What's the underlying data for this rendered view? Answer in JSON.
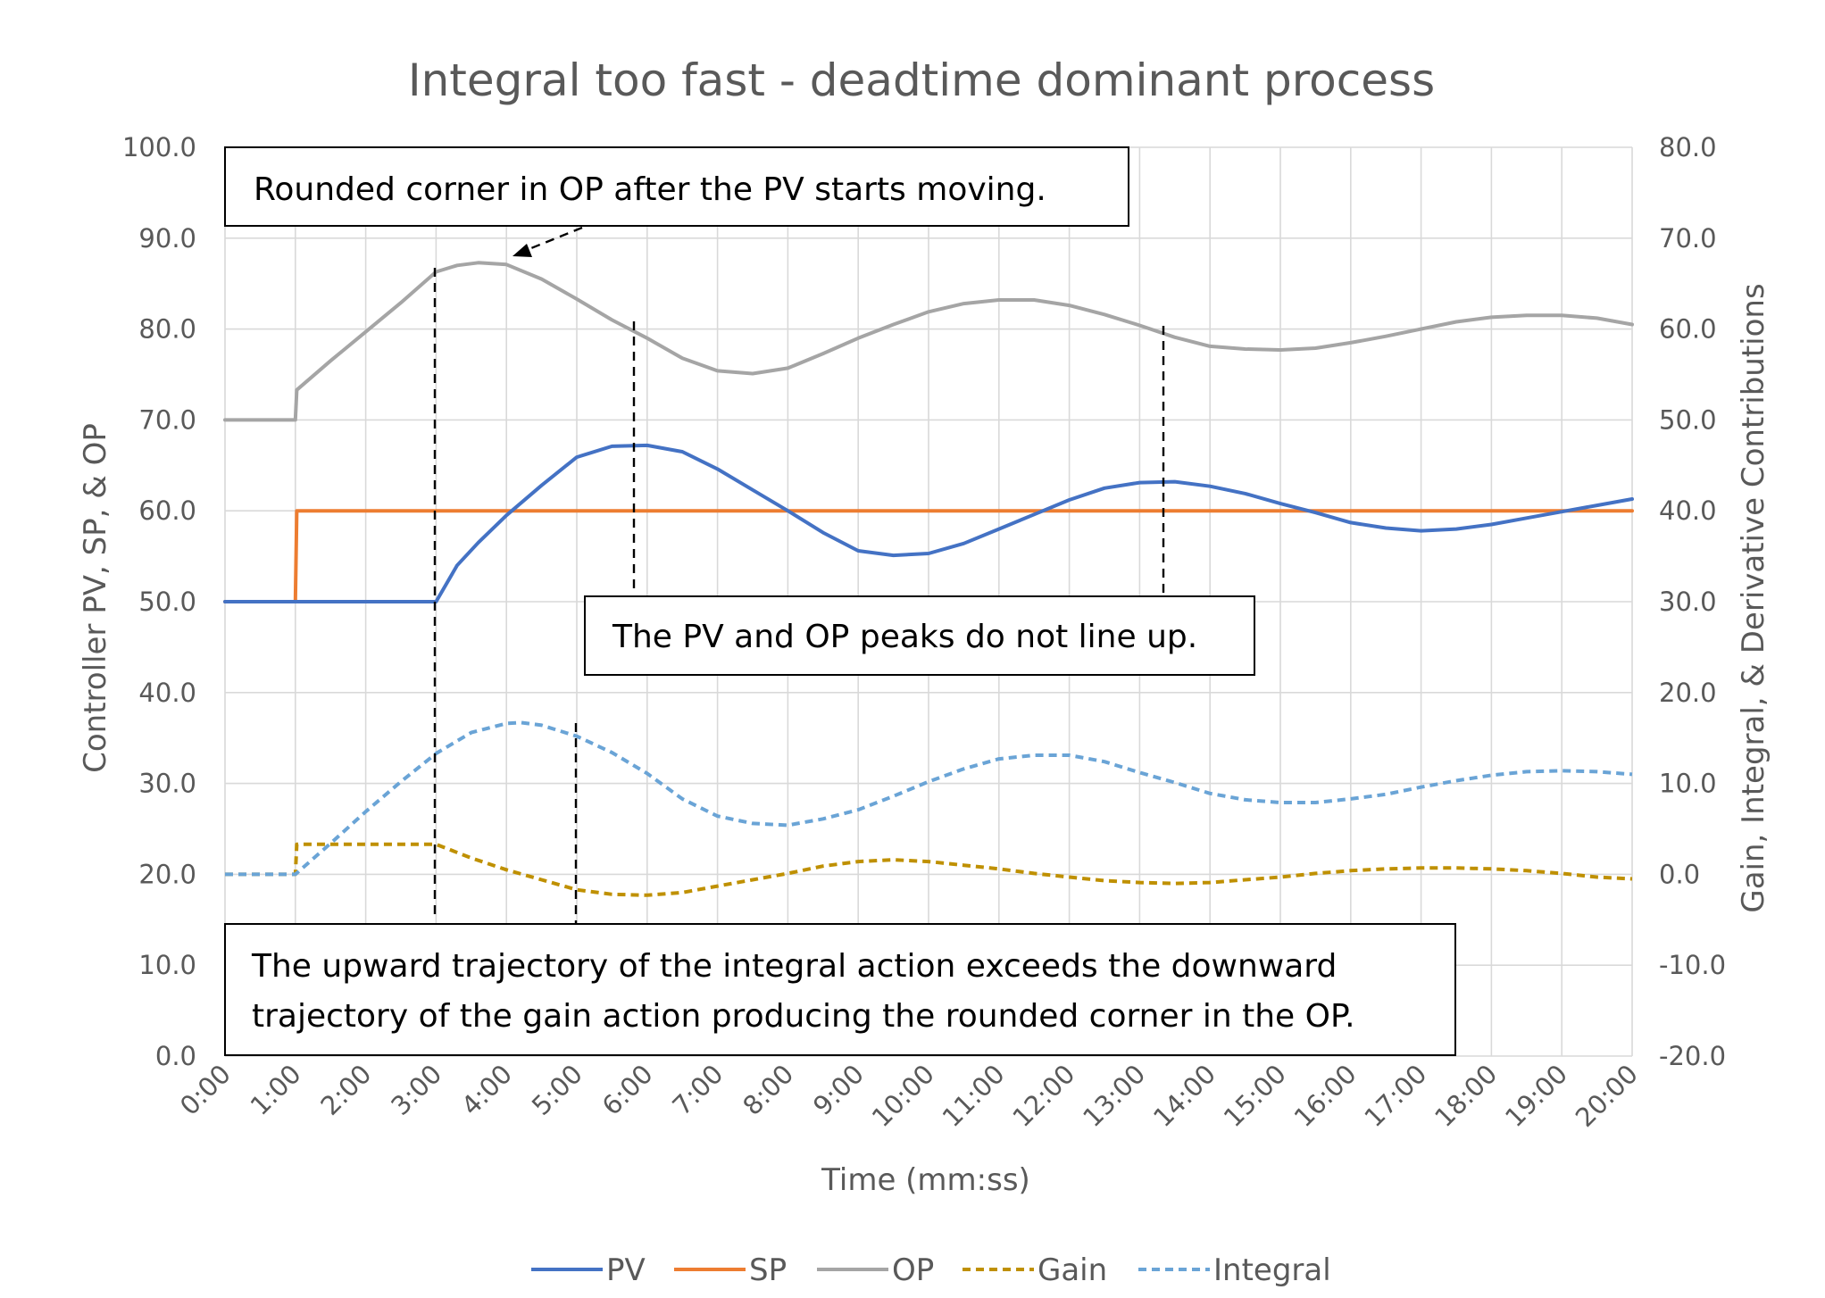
{
  "chart_data": {
    "type": "line",
    "title": "Integral too fast - deadtime dominant process",
    "xlabel": "Time (mm:ss)",
    "ylabel": "Controller PV, SP, & OP",
    "y2label": "Gain, Integral, & Derivative Contributions",
    "xlim": [
      0,
      20
    ],
    "ylim": [
      0,
      100
    ],
    "y2lim": [
      -20,
      80
    ],
    "x_tick_labels": [
      "0:00",
      "1:00",
      "2:00",
      "3:00",
      "4:00",
      "5:00",
      "6:00",
      "7:00",
      "8:00",
      "9:00",
      "10:00",
      "11:00",
      "12:00",
      "13:00",
      "14:00",
      "15:00",
      "16:00",
      "17:00",
      "18:00",
      "19:00",
      "20:00"
    ],
    "y_tick_labels": [
      "0.0",
      "10.0",
      "20.0",
      "30.0",
      "40.0",
      "50.0",
      "60.0",
      "70.0",
      "80.0",
      "90.0",
      "100.0"
    ],
    "y2_tick_labels": [
      "-20.0",
      "-10.0",
      "0.0",
      "10.0",
      "20.0",
      "30.0",
      "40.0",
      "50.0",
      "60.0",
      "70.0",
      "80.0"
    ],
    "grid": true,
    "legend_position": "bottom",
    "series": [
      {
        "name": "PV",
        "axis": "left",
        "color": "#4472c4",
        "dash": "solid",
        "x": [
          0,
          1,
          2,
          3,
          3.3,
          3.6,
          4,
          4.5,
          5,
          5.5,
          6,
          6.5,
          7,
          7.5,
          8,
          8.5,
          9,
          9.5,
          10,
          10.5,
          11,
          11.5,
          12,
          12.5,
          13,
          13.5,
          14,
          14.5,
          15,
          15.5,
          16,
          16.5,
          17,
          17.5,
          18,
          18.5,
          19,
          19.5,
          20
        ],
        "y": [
          50,
          50,
          50,
          50,
          54,
          56.5,
          59.5,
          62.8,
          65.9,
          67.1,
          67.2,
          66.5,
          64.6,
          62.3,
          60,
          57.6,
          55.6,
          55.1,
          55.3,
          56.4,
          58,
          59.6,
          61.2,
          62.5,
          63.1,
          63.2,
          62.7,
          61.9,
          60.8,
          59.8,
          58.7,
          58.1,
          57.8,
          58,
          58.5,
          59.2,
          59.9,
          60.6,
          61.3
        ]
      },
      {
        "name": "SP",
        "axis": "left",
        "color": "#ed7d31",
        "dash": "solid",
        "x": [
          0,
          1,
          1.02,
          20
        ],
        "y": [
          50,
          50,
          60,
          60
        ]
      },
      {
        "name": "OP",
        "axis": "left",
        "color": "#a5a5a5",
        "dash": "solid",
        "x": [
          0,
          1,
          1.02,
          1.5,
          2,
          2.5,
          3,
          3.3,
          3.6,
          4,
          4.5,
          5,
          5.5,
          6,
          6.5,
          7,
          7.5,
          8,
          8.5,
          9,
          9.5,
          10,
          10.5,
          11,
          11.5,
          12,
          12.5,
          13,
          13.5,
          14,
          14.5,
          15,
          15.5,
          16,
          16.5,
          17,
          17.5,
          18,
          18.5,
          19,
          19.5,
          20
        ],
        "y": [
          70,
          70,
          73.3,
          76.5,
          79.7,
          82.9,
          86.3,
          87,
          87.3,
          87.1,
          85.5,
          83.3,
          81,
          79,
          76.8,
          75.4,
          75.1,
          75.7,
          77.3,
          79,
          80.5,
          81.9,
          82.8,
          83.2,
          83.2,
          82.6,
          81.6,
          80.4,
          79.1,
          78.1,
          77.8,
          77.7,
          77.9,
          78.5,
          79.2,
          80,
          80.8,
          81.3,
          81.5,
          81.5,
          81.2,
          80.5
        ]
      },
      {
        "name": "Gain",
        "axis": "right",
        "color": "#bf9000",
        "dash": "dashed",
        "x": [
          0,
          1,
          1.02,
          2,
          3,
          3.5,
          4,
          4.5,
          5,
          5.5,
          6,
          6.5,
          7,
          7.5,
          8,
          8.5,
          9,
          9.5,
          10,
          10.5,
          11,
          11.5,
          12,
          12.5,
          13,
          13.5,
          14,
          14.5,
          15,
          15.5,
          16,
          16.5,
          17,
          17.5,
          18,
          18.5,
          19,
          19.5,
          20
        ],
        "y": [
          0,
          0,
          3.3,
          3.3,
          3.3,
          1.8,
          0.5,
          -0.6,
          -1.7,
          -2.2,
          -2.3,
          -2,
          -1.3,
          -0.6,
          0.1,
          0.9,
          1.4,
          1.6,
          1.4,
          1,
          0.6,
          0.1,
          -0.3,
          -0.7,
          -0.9,
          -1,
          -0.9,
          -0.6,
          -0.3,
          0.1,
          0.4,
          0.6,
          0.7,
          0.7,
          0.6,
          0.4,
          0.1,
          -0.3,
          -0.5
        ]
      },
      {
        "name": "Integral",
        "axis": "right",
        "color": "#6aa4d6",
        "dash": "dashed",
        "x": [
          0,
          1,
          1.5,
          2,
          2.5,
          3,
          3.5,
          4,
          4.2,
          4.5,
          5,
          5.5,
          6,
          6.5,
          7,
          7.5,
          8,
          8.5,
          9,
          9.5,
          10,
          10.5,
          11,
          11.5,
          12,
          12.5,
          13,
          13.5,
          14,
          14.5,
          15,
          15.5,
          16,
          16.5,
          17,
          17.5,
          18,
          18.5,
          19,
          19.5,
          20
        ],
        "y": [
          0,
          0,
          3.4,
          6.9,
          10.2,
          13.3,
          15.6,
          16.6,
          16.7,
          16.4,
          15.2,
          13.4,
          11.1,
          8.3,
          6.4,
          5.6,
          5.4,
          6.1,
          7.1,
          8.6,
          10.2,
          11.6,
          12.7,
          13.1,
          13.1,
          12.4,
          11.2,
          10.1,
          8.9,
          8.2,
          7.9,
          7.9,
          8.3,
          8.8,
          9.6,
          10.3,
          10.9,
          11.3,
          11.4,
          11.3,
          11
        ]
      }
    ],
    "annotations": [
      {
        "text": "Rounded corner in OP after the PV starts moving."
      },
      {
        "text": "The PV and OP peaks do not line up."
      },
      {
        "text": "The upward trajectory of the integral action exceeds the downward trajectory of the gain action producing the rounded corner in the OP."
      }
    ]
  },
  "annotation_lines": {
    "rounded_corner": [
      "Rounded corner in OP after the PV starts moving."
    ],
    "peaks": [
      "The PV and OP peaks do not line up."
    ],
    "trajectory": [
      "The upward trajectory of the integral action exceeds the downward",
      "trajectory of the gain action producing the rounded corner in the OP."
    ]
  }
}
